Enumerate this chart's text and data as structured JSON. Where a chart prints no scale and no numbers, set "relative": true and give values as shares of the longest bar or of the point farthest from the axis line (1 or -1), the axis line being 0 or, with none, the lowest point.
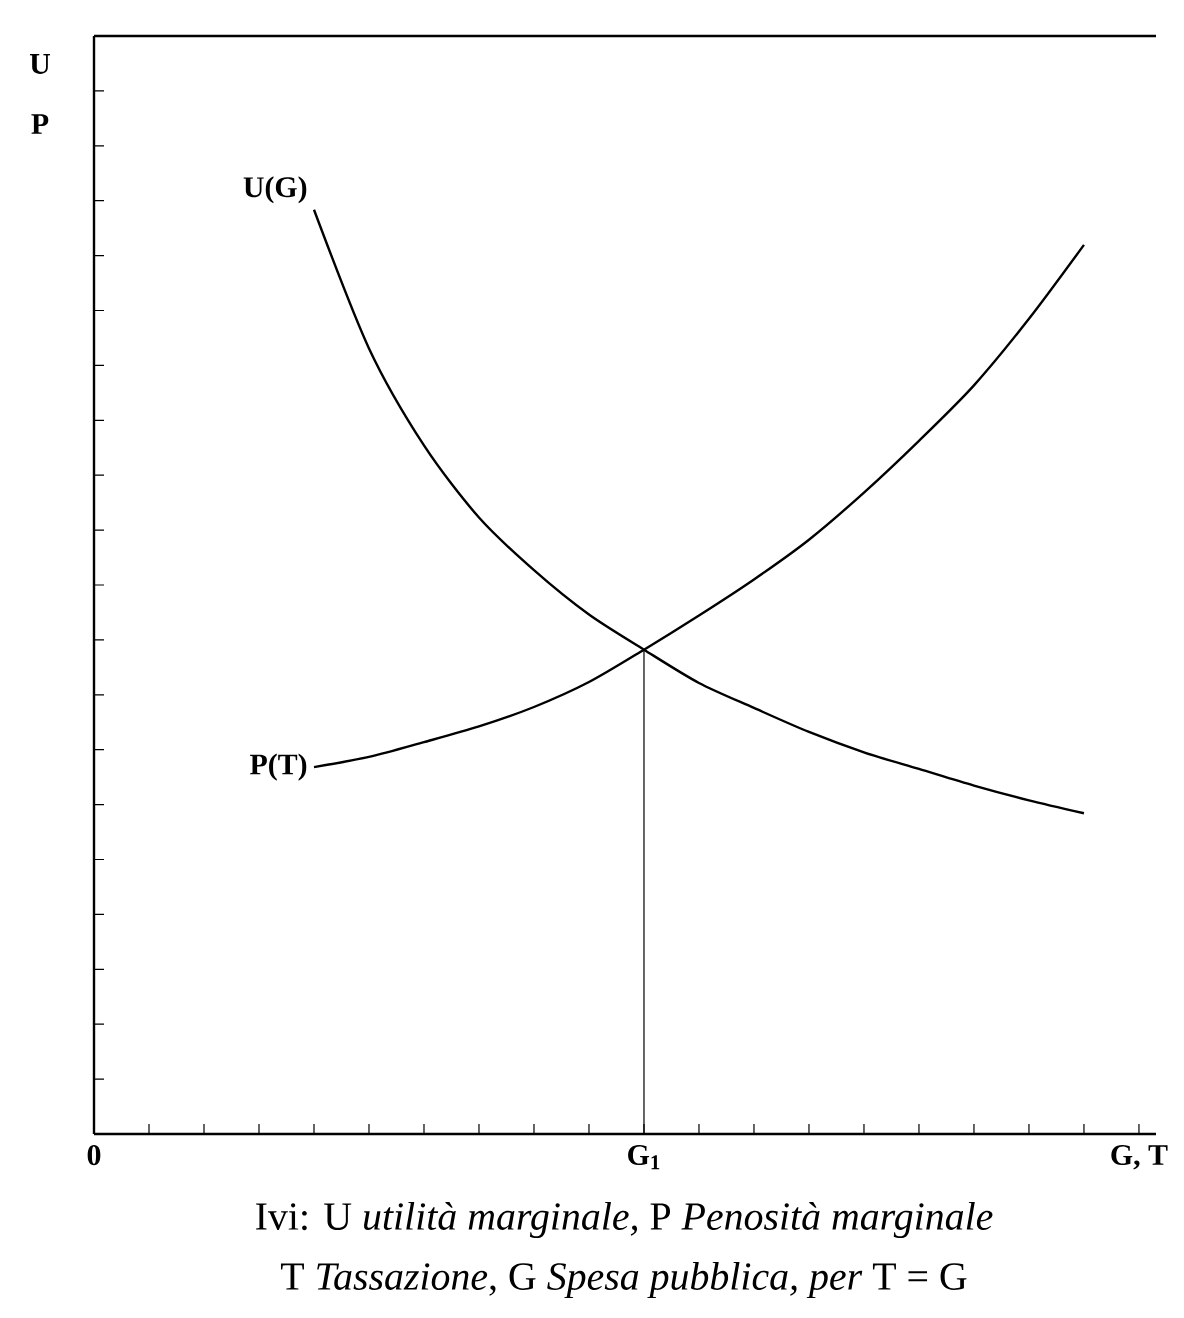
{
  "chart_data": {
    "type": "line",
    "relative": true,
    "ylabel": "U",
    "categories": [
      "0",
      null,
      null,
      null,
      null,
      null,
      null,
      null,
      null,
      null,
      "G$_{1}$",
      null,
      null,
      null,
      null,
      null,
      null,
      null,
      null,
      "G, T"
    ],
    "series": [
      {
        "name": "U(G)",
        "color": "#000000",
        "values": [
          null,
          null,
          null,
          null,
          1.0,
          0.85,
          0.745,
          0.667,
          0.61,
          0.562,
          0.524,
          0.488,
          0.461,
          0.435,
          0.413,
          0.395,
          0.377,
          0.361,
          0.347,
          null
        ]
      },
      {
        "name": "P(T)",
        "color": "#000000",
        "values": [
          null,
          null,
          null,
          null,
          0.397,
          0.408,
          0.424,
          0.441,
          0.462,
          0.489,
          0.524,
          0.561,
          0.6,
          0.643,
          0.694,
          0.75,
          0.81,
          0.882,
          0.962,
          null
        ]
      },
      {
        "color": "#000000",
        "x": [
          "G$_{1}$",
          "G$_{1}$"
        ],
        "values": [
          0,
          0.524
        ]
      }
    ],
    "annotations": [
      "P",
      "Ivi: U *utilità marginale,* P *Penosità marginale*",
      "T *Tassazione*, G *Spesa pubblica, per* T = G"
    ]
  }
}
